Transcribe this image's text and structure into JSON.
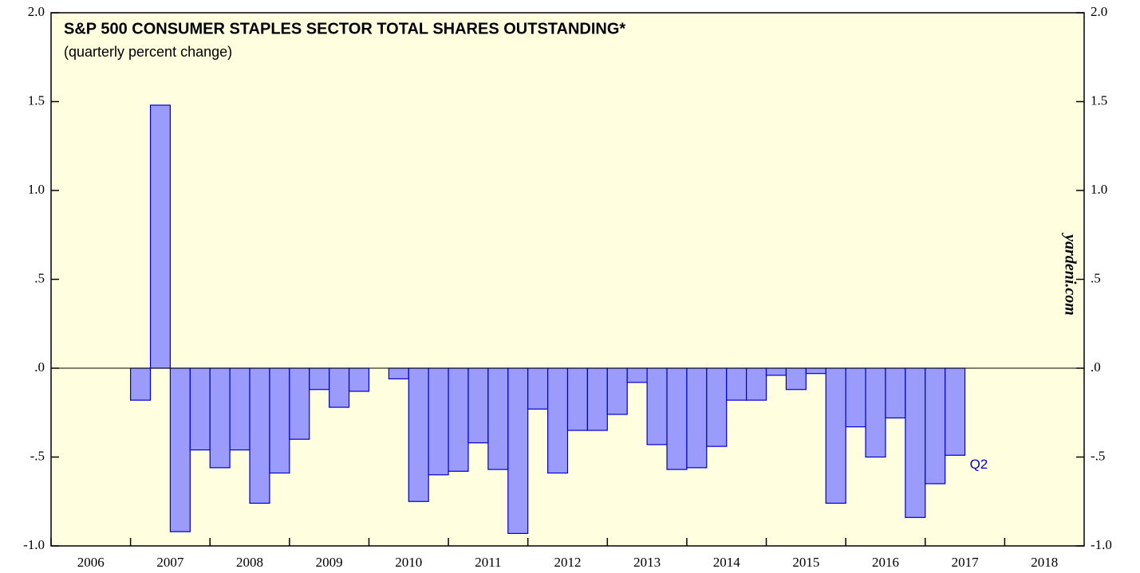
{
  "chart_data": {
    "type": "bar",
    "title": "S&P 500 CONSUMER STAPLES SECTOR TOTAL SHARES OUTSTANDING*",
    "subtitle": "(quarterly percent change)",
    "watermark": "yardeni.com",
    "annotation": "Q2",
    "color": "#9b9bfb",
    "edge_color": "#0000cc",
    "x": [
      2007,
      2007.25,
      2007.5,
      2007.75,
      2008,
      2008.25,
      2008.5,
      2008.75,
      2009,
      2009.25,
      2009.5,
      2009.75,
      2010,
      2010.25,
      2010.5,
      2010.75,
      2011,
      2011.25,
      2011.5,
      2011.75,
      2012,
      2012.25,
      2012.5,
      2012.75,
      2013,
      2013.25,
      2013.5,
      2013.75,
      2014,
      2014.25,
      2014.5,
      2014.75,
      2015,
      2015.25,
      2015.5,
      2015.75,
      2016,
      2016.25,
      2016.5,
      2016.75,
      2017,
      2017.25
    ],
    "values": [
      -0.18,
      1.48,
      -0.92,
      -0.46,
      -0.56,
      -0.46,
      -0.76,
      -0.59,
      -0.4,
      -0.12,
      -0.22,
      -0.13,
      null,
      -0.06,
      -0.75,
      -0.6,
      -0.58,
      -0.42,
      -0.57,
      -0.93,
      -0.23,
      -0.59,
      -0.35,
      -0.35,
      -0.26,
      -0.08,
      -0.43,
      -0.57,
      -0.56,
      -0.44,
      -0.18,
      -0.18,
      -0.04,
      -0.12,
      -0.03,
      -0.76,
      -0.33,
      -0.5,
      -0.28,
      -0.84,
      -0.65,
      -0.49
    ],
    "bar_width": 0.25,
    "xlim": [
      2006,
      2019
    ],
    "xticks": [
      2006,
      2007,
      2008,
      2009,
      2010,
      2011,
      2012,
      2013,
      2014,
      2015,
      2016,
      2017,
      2018
    ],
    "ylim": [
      -1.0,
      2.0
    ],
    "yticks": [
      {
        "value": 2.0,
        "label": "2.0"
      },
      {
        "value": 1.5,
        "label": "1.5"
      },
      {
        "value": 1.0,
        "label": "1.0"
      },
      {
        "value": 0.5,
        "label": ".5"
      },
      {
        "value": 0.0,
        "label": ".0"
      },
      {
        "value": -0.5,
        "label": "-.5"
      },
      {
        "value": -1.0,
        "label": "-1.0"
      }
    ]
  }
}
